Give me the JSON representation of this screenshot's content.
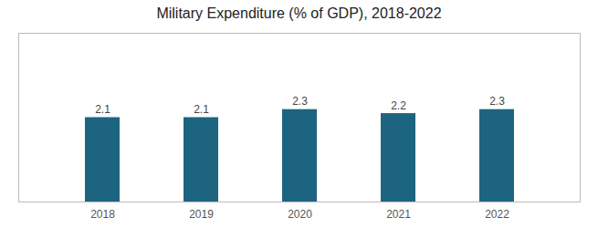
{
  "chart_data": {
    "type": "bar",
    "title": "Military Expenditure (% of GDP), 2018-2022",
    "categories": [
      "2018",
      "2019",
      "2020",
      "2021",
      "2022"
    ],
    "values": [
      2.1,
      2.1,
      2.3,
      2.2,
      2.3
    ],
    "color": "#1d6480",
    "ylim": [
      0,
      4.2
    ],
    "data_labels": true,
    "tick_labels": "x",
    "grid": false
  }
}
